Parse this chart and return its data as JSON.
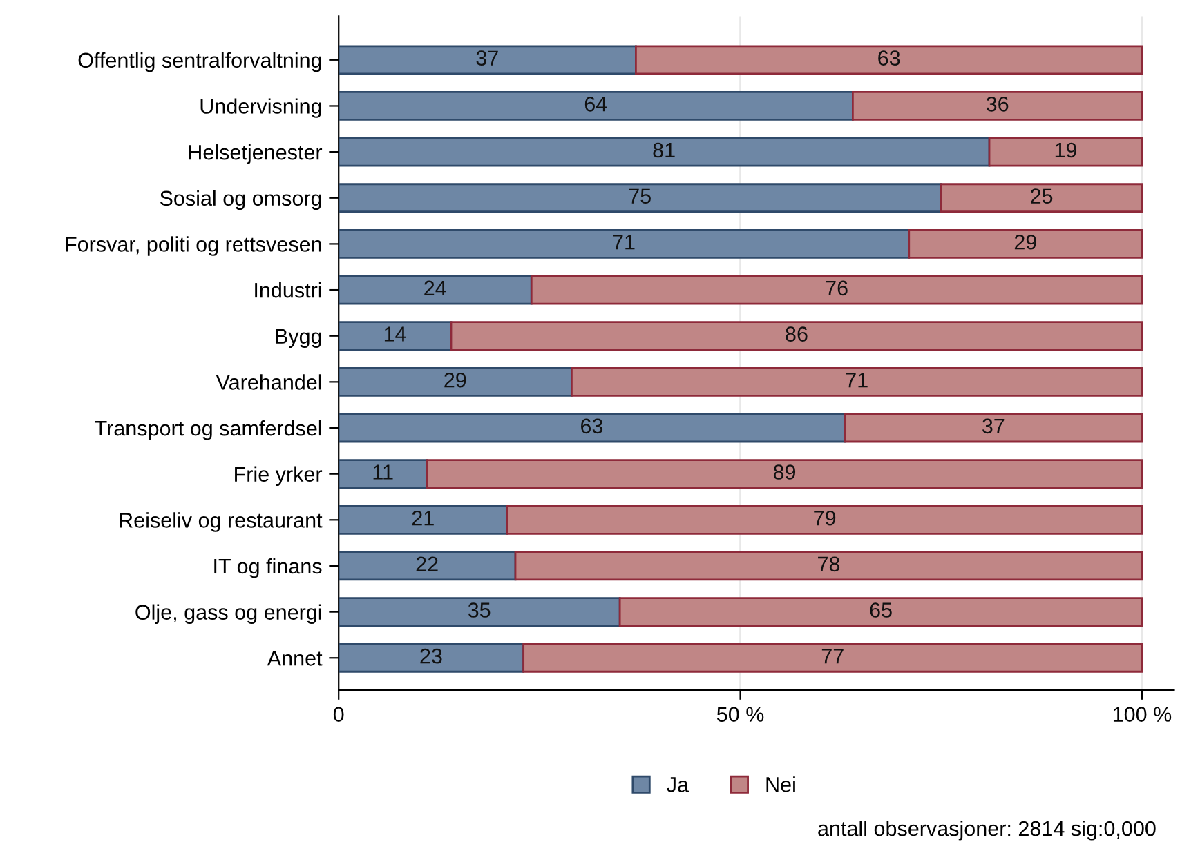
{
  "chart_data": {
    "type": "bar",
    "orientation": "horizontal",
    "stacked": true,
    "data_labels": true,
    "grid": "x",
    "legend": "bottom",
    "categories": [
      "Offentlig sentralforvaltning",
      "Undervisning",
      "Helsetjenester",
      "Sosial og omsorg",
      "Forsvar, politi og rettsvesen",
      "Industri",
      "Bygg",
      "Varehandel",
      "Transport og samferdsel",
      "Frie yrker",
      "Reiseliv og restaurant",
      "IT og finans",
      "Olje, gass og energi",
      "Annet"
    ],
    "series": [
      {
        "name": "Ja",
        "color": "#6e87a5",
        "values": [
          37,
          64,
          81,
          75,
          71,
          24,
          14,
          29,
          63,
          11,
          21,
          22,
          35,
          23
        ]
      },
      {
        "name": "Nei",
        "color": "#c08686",
        "values": [
          63,
          36,
          19,
          25,
          29,
          76,
          86,
          71,
          37,
          89,
          79,
          78,
          65,
          77
        ]
      }
    ],
    "xlim": [
      0,
      104
    ],
    "xticks": [
      0,
      {
        "value": 50,
        "label": "50 %"
      },
      {
        "value": 100,
        "label": "100 %"
      }
    ],
    "annotations": [
      "antall observasjoner: 2814 sig:0,000"
    ]
  }
}
